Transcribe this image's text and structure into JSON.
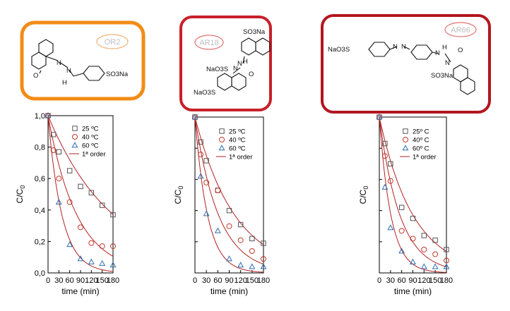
{
  "dyes": [
    {
      "tag": "OR2",
      "frame_color": "#f28c17",
      "labels": [
        "O",
        "N",
        "N",
        "H",
        "SO3Na"
      ]
    },
    {
      "tag": "AR18",
      "frame_color": "#c8202a",
      "labels": [
        "SO3Na",
        "N",
        "N",
        "H",
        "NaO3S",
        "O",
        "NaO3S"
      ]
    },
    {
      "tag": "AR66",
      "frame_color": "#b3161f",
      "labels": [
        "NaO3S",
        "N",
        "N",
        "N",
        "N",
        "H",
        "O",
        "SO3Na"
      ]
    }
  ],
  "chart_data": [
    {
      "type": "scatter",
      "xlabel": "time (min)",
      "ylabel": "C/C0",
      "xlim": [
        0,
        180
      ],
      "ylim": [
        0,
        1.0
      ],
      "xticks": [
        "0",
        "30",
        "60",
        "90",
        "120",
        "150",
        "180"
      ],
      "xtick_values": [
        0,
        30,
        60,
        90,
        120,
        150,
        180
      ],
      "yticks": [
        "0,0",
        "0,2",
        "0,4",
        "0,6",
        "0,8",
        "1,0"
      ],
      "ytick_values": [
        0,
        0.2,
        0.4,
        0.6,
        0.8,
        1.0
      ],
      "legend": {
        "placement": "top-right",
        "fit_label": "1ª order"
      },
      "series": [
        {
          "name": "25 ºC",
          "marker": "square",
          "color": "#555555",
          "x": [
            0,
            15,
            30,
            60,
            90,
            120,
            150,
            180
          ],
          "y": [
            1.0,
            0.88,
            0.77,
            0.65,
            0.55,
            0.51,
            0.43,
            0.37
          ],
          "fit_k": 0.0055,
          "fit_c0": 1.0
        },
        {
          "name": "40 ºC",
          "marker": "circle",
          "color": "#c0392b",
          "x": [
            0,
            15,
            30,
            60,
            90,
            120,
            150,
            180
          ],
          "y": [
            1.0,
            0.78,
            0.6,
            0.45,
            0.29,
            0.19,
            0.17,
            0.17
          ],
          "fit_k": 0.0125,
          "fit_c0": 1.0
        },
        {
          "name": "60 ºC",
          "marker": "triangle",
          "color": "#2e6fb0",
          "x": [
            0,
            30,
            60,
            90,
            120,
            150,
            180
          ],
          "y": [
            1.0,
            0.45,
            0.18,
            0.09,
            0.07,
            0.06,
            0.05
          ],
          "fit_k": 0.026,
          "fit_c0": 1.0
        }
      ],
      "fit_color": "#b22222"
    },
    {
      "type": "scatter",
      "xlabel": "time (min)",
      "ylabel": "C/C0",
      "xlim": [
        0,
        180
      ],
      "ylim": [
        0,
        1.0
      ],
      "xticks": [
        "0",
        "30",
        "60",
        "90",
        "120",
        "150",
        "180"
      ],
      "xtick_values": [
        0,
        30,
        60,
        90,
        120,
        150,
        180
      ],
      "yticks": [],
      "ytick_values": [
        0,
        0.2,
        0.4,
        0.6,
        0.8,
        1.0
      ],
      "legend": {
        "placement": "top-right",
        "fit_label": "1ª order"
      },
      "series": [
        {
          "name": "25 ºC",
          "marker": "square",
          "color": "#555555",
          "x": [
            0,
            15,
            30,
            60,
            90,
            120,
            150,
            180
          ],
          "y": [
            1.0,
            0.84,
            0.72,
            0.53,
            0.4,
            0.31,
            0.22,
            0.19
          ],
          "fit_k": 0.0095,
          "fit_c0": 1.0
        },
        {
          "name": "40 ºC",
          "marker": "circle",
          "color": "#c0392b",
          "x": [
            0,
            15,
            30,
            60,
            90,
            120,
            150,
            180
          ],
          "y": [
            1.0,
            0.76,
            0.58,
            0.53,
            0.3,
            0.21,
            0.14,
            0.09
          ],
          "fit_k": 0.016,
          "fit_c0": 1.0
        },
        {
          "name": "60 ºC",
          "marker": "triangle",
          "color": "#2e6fb0",
          "x": [
            0,
            15,
            30,
            60,
            90,
            120,
            150,
            180
          ],
          "y": [
            1.0,
            0.62,
            0.38,
            0.27,
            0.09,
            0.05,
            0.04,
            0.04
          ],
          "fit_k": 0.03,
          "fit_c0": 1.0
        }
      ],
      "fit_color": "#b22222"
    },
    {
      "type": "scatter",
      "xlabel": "time (min)",
      "ylabel": "C/C0",
      "xlim": [
        0,
        180
      ],
      "ylim": [
        0,
        1.0
      ],
      "xticks": [
        "0",
        "30",
        "60",
        "90",
        "120",
        "150",
        "180"
      ],
      "xtick_values": [
        0,
        30,
        60,
        90,
        120,
        150,
        180
      ],
      "yticks": [],
      "ytick_values": [
        0,
        0.2,
        0.4,
        0.6,
        0.8,
        1.0
      ],
      "legend": {
        "placement": "top-right",
        "fit_label": "1ª order"
      },
      "series": [
        {
          "name": "25º C",
          "marker": "square",
          "color": "#555555",
          "x": [
            0,
            15,
            30,
            60,
            90,
            120,
            150,
            180
          ],
          "y": [
            1.0,
            0.83,
            0.7,
            0.42,
            0.35,
            0.24,
            0.21,
            0.15
          ],
          "fit_k": 0.011,
          "fit_c0": 1.0
        },
        {
          "name": "40º C",
          "marker": "circle",
          "color": "#c0392b",
          "x": [
            0,
            15,
            30,
            60,
            90,
            120,
            150,
            180
          ],
          "y": [
            1.0,
            0.75,
            0.59,
            0.27,
            0.22,
            0.15,
            0.12,
            0.08
          ],
          "fit_k": 0.018,
          "fit_c0": 1.0
        },
        {
          "name": "60º C",
          "marker": "triangle",
          "color": "#2e6fb0",
          "x": [
            0,
            15,
            30,
            60,
            90,
            120,
            150,
            180
          ],
          "y": [
            1.0,
            0.55,
            0.29,
            0.14,
            0.07,
            0.04,
            0.04,
            0.04
          ],
          "fit_k": 0.032,
          "fit_c0": 1.0
        }
      ],
      "fit_color": "#b22222"
    }
  ]
}
